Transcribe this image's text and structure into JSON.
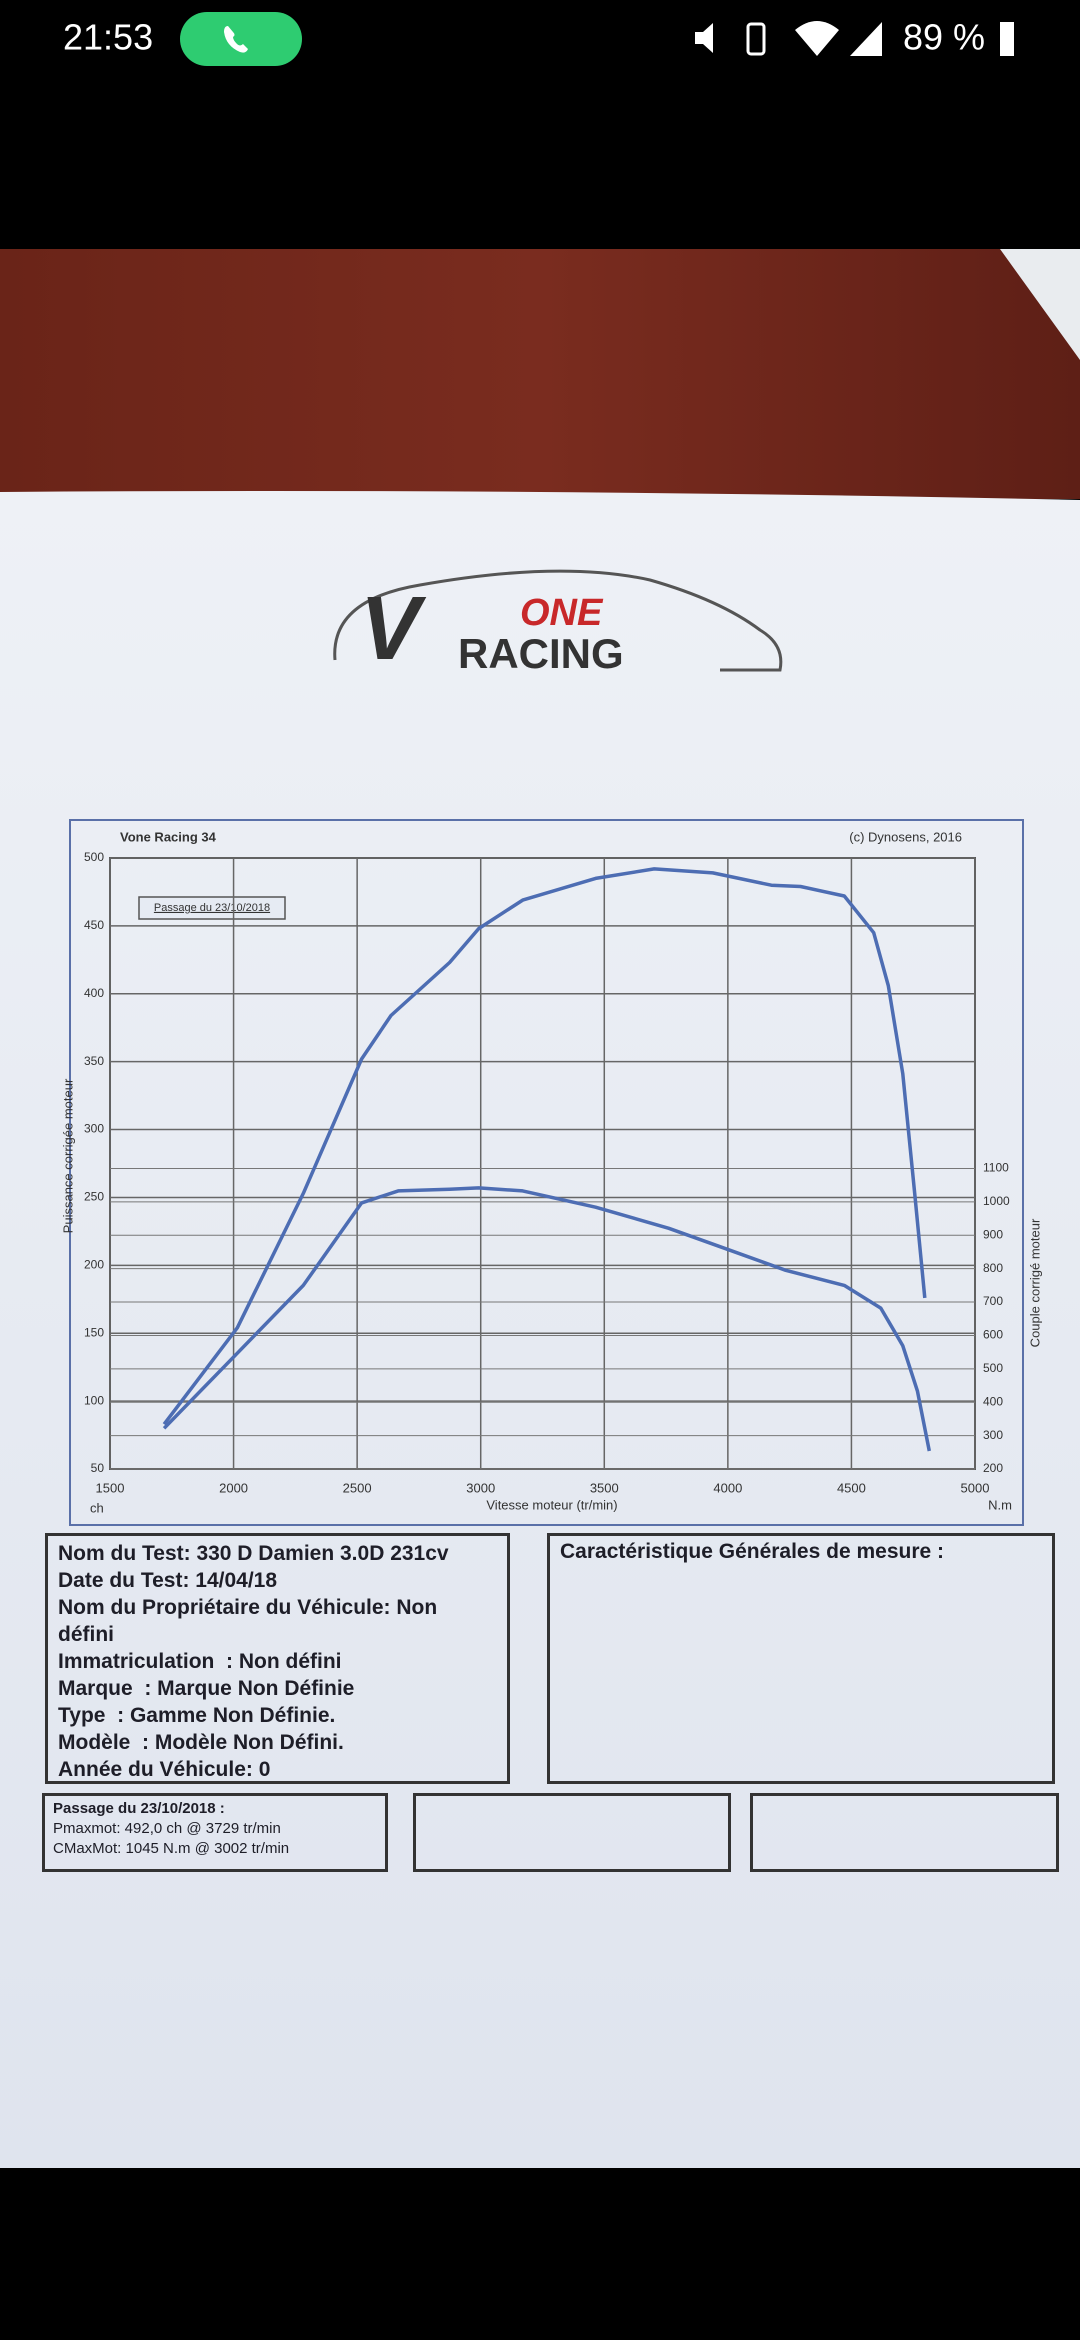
{
  "status_bar": {
    "time": "21:53",
    "battery": "89 %"
  },
  "logo": {
    "v": "V",
    "one": "ONE",
    "racing": "RACING"
  },
  "chart_data": {
    "type": "line",
    "header_left": "Vone Racing 34",
    "header_right": "(c) Dynosens, 2016",
    "legend": "Passage du 23/10/2018",
    "y_label": "Puissance corrigée moteur",
    "y2_label": "Couple corrigé moteur",
    "x_label": "Vitesse moteur (tr/min)",
    "y_unit": "ch",
    "y2_unit": "N.m",
    "xlim": [
      1500,
      5000
    ],
    "xticks": [
      1500,
      2000,
      2500,
      3000,
      3500,
      4000,
      4500,
      5000
    ],
    "ylim": [
      50,
      500
    ],
    "yticks": [
      50,
      100,
      150,
      200,
      250,
      300,
      350,
      400,
      450,
      500
    ],
    "y2lim": [
      200,
      2030
    ],
    "y2ticks": [
      200,
      300,
      400,
      500,
      600,
      700,
      800,
      900,
      1000,
      1100
    ],
    "grid": true,
    "series": [
      {
        "color": "#4d6db3",
        "x": [
          1719,
          2015,
          2282,
          2518,
          2637,
          2874,
          2992,
          3170,
          3465,
          3702,
          3939,
          4176,
          4294,
          4471,
          4590,
          4649,
          4708,
          4756,
          4797
        ],
        "values": [
          83,
          154,
          253,
          352,
          384,
          423,
          448,
          469,
          485,
          492,
          489,
          480,
          479,
          472,
          445,
          406,
          341,
          253,
          176
        ]
      },
      {
        "color": "#4d6db3",
        "axis": "y2",
        "x": [
          1719,
          1985,
          2282,
          2518,
          2666,
          2874,
          2992,
          3170,
          3465,
          3761,
          3998,
          4234,
          4471,
          4619,
          4708,
          4767,
          4815
        ],
        "values": [
          322,
          524,
          750,
          997,
          1033,
          1038,
          1042,
          1033,
          984,
          921,
          858,
          795,
          750,
          682,
          569,
          434,
          254
        ]
      }
    ]
  },
  "info": {
    "test": [
      "Nom du Test: 330 D Damien 3.0D 231cv",
      "Date du Test: 14/04/18",
      "Nom du Propriétaire du Véhicule: Non défini",
      "Immatriculation  : Non défini",
      "Marque  : Marque Non Définie",
      "Type  : Gamme Non Définie.",
      "Modèle  : Modèle Non Défini.",
      "Année du Véhicule: 0"
    ],
    "measure_title": "Caractéristique Générales de mesure :",
    "passage": [
      "Passage du 23/10/2018 :",
      "Pmaxmot: 492,0 ch @ 3729 tr/min",
      "CMaxMot: 1045 N.m @ 3002 tr/min"
    ]
  }
}
